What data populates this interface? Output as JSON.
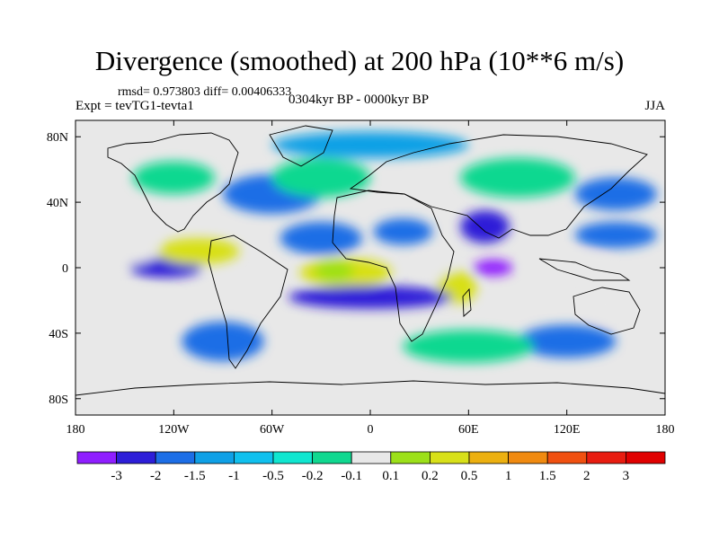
{
  "header": {
    "title": "Divergence (smoothed) at 200 hPa (10**6 m/s)",
    "stats": "rmsd= 0.973803 diff= 0.00406333",
    "experiment": "Expt = tevTG1-tevta1",
    "period": "0304kyr BP - 0000kyr BP",
    "season": "JJA"
  },
  "map": {
    "projection": "cylindrical equidistant",
    "lon_range": [
      -180,
      180
    ],
    "lat_range": [
      -90,
      90
    ],
    "x_ticks": [
      {
        "value": -180,
        "label": "180"
      },
      {
        "value": -120,
        "label": "120W"
      },
      {
        "value": -60,
        "label": "60W"
      },
      {
        "value": 0,
        "label": "0"
      },
      {
        "value": 60,
        "label": "60E"
      },
      {
        "value": 120,
        "label": "120E"
      },
      {
        "value": 180,
        "label": "180"
      }
    ],
    "y_ticks": [
      {
        "value": 80,
        "label": "80N"
      },
      {
        "value": 40,
        "label": "40N"
      },
      {
        "value": 0,
        "label": "0"
      },
      {
        "value": -40,
        "label": "40S"
      },
      {
        "value": -80,
        "label": "80S"
      }
    ],
    "anomaly_features": [
      {
        "lon": -15,
        "lat": -3,
        "rx": 28,
        "ry": 9,
        "level": 9
      },
      {
        "lon": -22,
        "lat": -2,
        "rx": 12,
        "ry": 6,
        "level": 8
      },
      {
        "lon": 53,
        "lat": -12,
        "rx": 12,
        "ry": 10,
        "level": 9
      },
      {
        "lon": 40,
        "lat": 0,
        "rx": 10,
        "ry": 5,
        "level": 7
      },
      {
        "lon": 75,
        "lat": 0,
        "rx": 12,
        "ry": 5,
        "level": 0
      },
      {
        "lon": 0,
        "lat": -18,
        "rx": 50,
        "ry": 7,
        "level": 1
      },
      {
        "lon": -30,
        "lat": 18,
        "rx": 25,
        "ry": 10,
        "level": 2
      },
      {
        "lon": 20,
        "lat": 22,
        "rx": 18,
        "ry": 8,
        "level": 2
      },
      {
        "lon": 70,
        "lat": 25,
        "rx": 15,
        "ry": 10,
        "level": 1
      },
      {
        "lon": -125,
        "lat": 0,
        "rx": 22,
        "ry": 6,
        "level": 1
      },
      {
        "lon": -105,
        "lat": 10,
        "rx": 25,
        "ry": 8,
        "level": 9
      },
      {
        "lon": -150,
        "lat": 10,
        "rx": 20,
        "ry": 8,
        "level": 7
      },
      {
        "lon": -140,
        "lat": -25,
        "rx": 25,
        "ry": 10,
        "level": 7
      },
      {
        "lon": 155,
        "lat": -22,
        "rx": 25,
        "ry": 10,
        "level": 7
      },
      {
        "lon": 120,
        "lat": 2,
        "rx": 25,
        "ry": 6,
        "level": 7
      },
      {
        "lon": 150,
        "lat": 20,
        "rx": 25,
        "ry": 8,
        "level": 2
      },
      {
        "lon": 150,
        "lat": 45,
        "rx": 25,
        "ry": 10,
        "level": 2
      },
      {
        "lon": -60,
        "lat": 45,
        "rx": 30,
        "ry": 12,
        "level": 2
      },
      {
        "lon": -90,
        "lat": -45,
        "rx": 25,
        "ry": 12,
        "level": 2
      },
      {
        "lon": 120,
        "lat": -45,
        "rx": 30,
        "ry": 10,
        "level": 2
      },
      {
        "lon": 60,
        "lat": -48,
        "rx": 40,
        "ry": 10,
        "level": 6
      },
      {
        "lon": -30,
        "lat": 55,
        "rx": 30,
        "ry": 12,
        "level": 6
      },
      {
        "lon": 90,
        "lat": 55,
        "rx": 35,
        "ry": 12,
        "level": 6
      },
      {
        "lon": -120,
        "lat": 55,
        "rx": 25,
        "ry": 10,
        "level": 6
      },
      {
        "lon": 0,
        "lat": 75,
        "rx": 60,
        "ry": 8,
        "level": 3
      }
    ]
  },
  "colorbar": {
    "labels": [
      "-3",
      "-2",
      "-1.5",
      "-1",
      "-0.5",
      "-0.2",
      "-0.1",
      "0.1",
      "0.2",
      "0.5",
      "1",
      "1.5",
      "2",
      "3"
    ],
    "colors": [
      "#8f1eff",
      "#2d1ed8",
      "#1c6ee6",
      "#0fa0e6",
      "#10c0ee",
      "#10e6d0",
      "#10d890",
      "#e8e8e8",
      "#9ce019",
      "#d8e019",
      "#ecb010",
      "#f08a10",
      "#f05010",
      "#e81c10",
      "#e00000"
    ]
  }
}
